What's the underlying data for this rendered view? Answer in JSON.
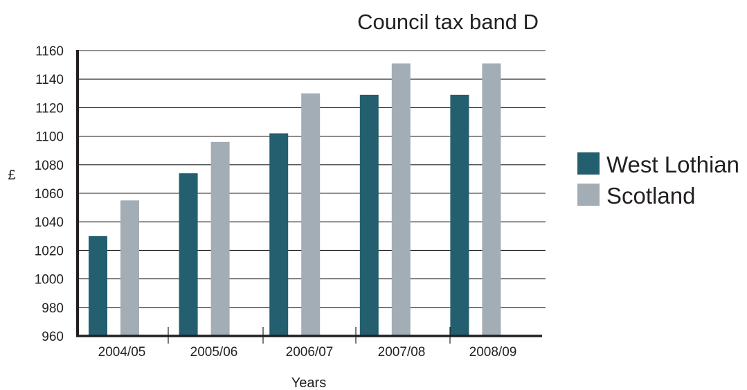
{
  "chart_data": {
    "type": "bar",
    "title": "Council tax band D",
    "xlabel": "Years",
    "ylabel": "£",
    "categories": [
      "2004/05",
      "2005/06",
      "2006/07",
      "2007/08",
      "2008/09"
    ],
    "series": [
      {
        "name": "West Lothian",
        "color": "#245f6f",
        "values": [
          1030,
          1074,
          1102,
          1129,
          1129
        ]
      },
      {
        "name": "Scotland",
        "color": "#a2adb5",
        "values": [
          1055,
          1096,
          1130,
          1151,
          1151
        ]
      }
    ],
    "ylim": [
      960,
      1160
    ],
    "yticks": [
      960,
      980,
      1000,
      1020,
      1040,
      1060,
      1080,
      1100,
      1120,
      1140,
      1160
    ],
    "grid": true,
    "legend_position": "right"
  }
}
